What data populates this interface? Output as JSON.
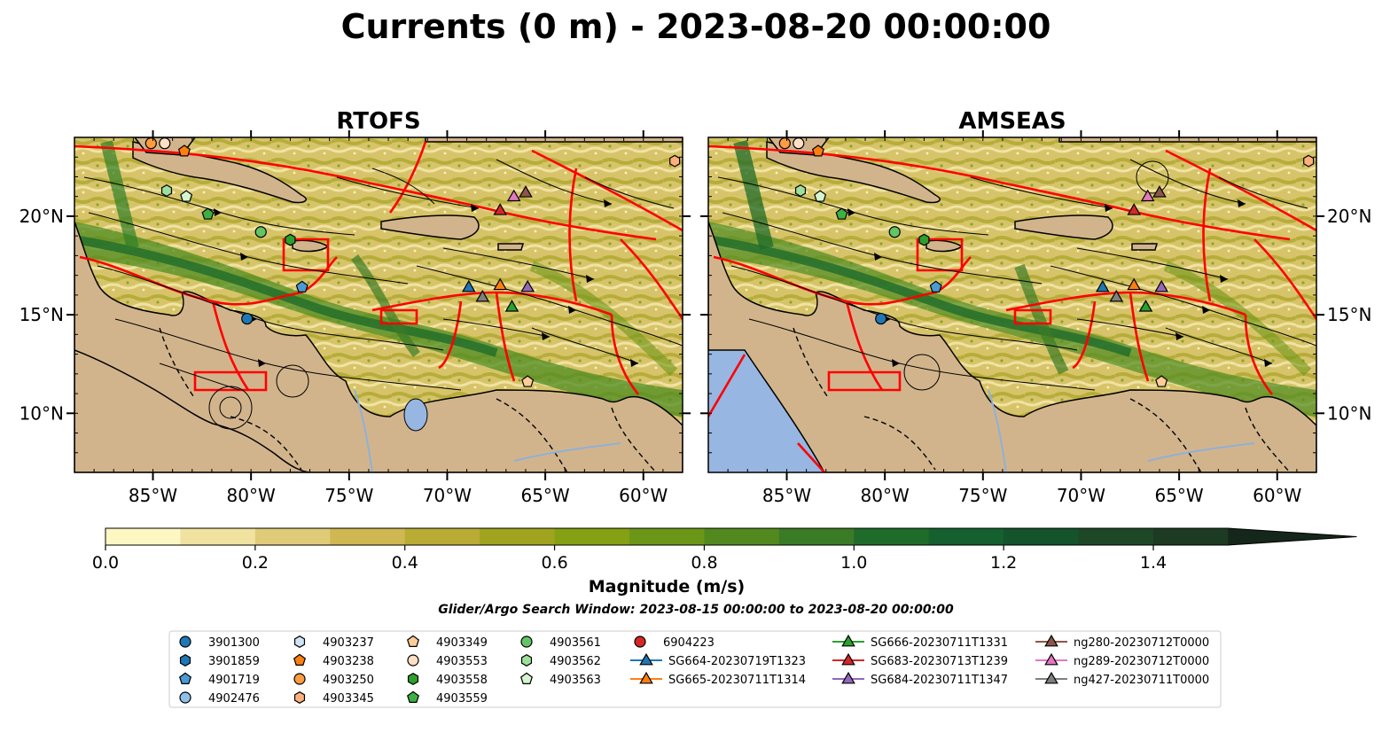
{
  "title": "Currents (0 m) - 2023-08-20 00:00:00",
  "panels": [
    {
      "title": "RTOFS",
      "ytick_side": "left"
    },
    {
      "title": "AMSEAS",
      "ytick_side": "right"
    }
  ],
  "map_extent": {
    "lon": [
      -89,
      -58
    ],
    "lat": [
      7,
      24
    ]
  },
  "xticks": [
    {
      "lon": -85,
      "label": "85°W"
    },
    {
      "lon": -80,
      "label": "80°W"
    },
    {
      "lon": -75,
      "label": "75°W"
    },
    {
      "lon": -70,
      "label": "70°W"
    },
    {
      "lon": -65,
      "label": "65°W"
    },
    {
      "lon": -60,
      "label": "60°W"
    }
  ],
  "yticks": [
    {
      "lat": 20,
      "label": "20°N"
    },
    {
      "lat": 15,
      "label": "15°N"
    },
    {
      "lat": 10,
      "label": "10°N"
    }
  ],
  "colors": {
    "land": "#d2b48c",
    "ocean_pacific": "#97b6e1",
    "eez": "#ff0000",
    "border": "#000000",
    "river": "#8fb0d8"
  },
  "colorbar": {
    "label": "Magnitude (m/s)",
    "min": 0.0,
    "max": 1.5,
    "extend": "max",
    "ticks": [
      {
        "v": 0.0,
        "label": "0.0"
      },
      {
        "v": 0.2,
        "label": "0.2"
      },
      {
        "v": 0.4,
        "label": "0.4"
      },
      {
        "v": 0.6,
        "label": "0.6"
      },
      {
        "v": 0.8,
        "label": "0.8"
      },
      {
        "v": 1.0,
        "label": "1.0"
      },
      {
        "v": 1.2,
        "label": "1.2"
      },
      {
        "v": 1.4,
        "label": "1.4"
      }
    ],
    "bins": [
      "#fdf7c3",
      "#f1e2a0",
      "#e0cb79",
      "#cfb752",
      "#b9ab34",
      "#9fa31e",
      "#86a014",
      "#6c9618",
      "#52891e",
      "#3a7b25",
      "#1f6b2a",
      "#14602f",
      "#14532c",
      "#1e4728",
      "#1d3a22"
    ],
    "extend_color": "#15261a"
  },
  "search_window": "Glider/Argo Search Window: 2023-08-15 00:00:00 to 2023-08-20 00:00:00",
  "legend_items": [
    {
      "label": "3901300",
      "marker": "circle",
      "color": "#1f77b4"
    },
    {
      "label": "3901859",
      "marker": "hexagon",
      "color": "#1f77b4"
    },
    {
      "label": "4901719",
      "marker": "pentagon",
      "color": "#4a9ad4"
    },
    {
      "label": "4902476",
      "marker": "circle",
      "color": "#8fc1e8"
    },
    {
      "label": "4903237",
      "marker": "hexagon",
      "color": "#cfe4f4"
    },
    {
      "label": "4903238",
      "marker": "pentagon",
      "color": "#ff7f0e"
    },
    {
      "label": "4903250",
      "marker": "circle",
      "color": "#ff9c3f"
    },
    {
      "label": "4903345",
      "marker": "hexagon",
      "color": "#ffb07a"
    },
    {
      "label": "4903349",
      "marker": "pentagon",
      "color": "#ffcc99"
    },
    {
      "label": "4903553",
      "marker": "circle",
      "color": "#ffe0c4"
    },
    {
      "label": "4903558",
      "marker": "hexagon",
      "color": "#2ca02c"
    },
    {
      "label": "4903559",
      "marker": "pentagon",
      "color": "#3cb043"
    },
    {
      "label": "4903561",
      "marker": "circle",
      "color": "#63c466"
    },
    {
      "label": "4903562",
      "marker": "hexagon",
      "color": "#9ee09b"
    },
    {
      "label": "4903563",
      "marker": "pentagon",
      "color": "#d4f5cf"
    },
    {
      "label": "6904223",
      "marker": "circle",
      "color": "#d62728"
    },
    {
      "label": "SG664-20230719T1323",
      "marker": "triangle",
      "color": "#1f77b4",
      "line": true
    },
    {
      "label": "SG665-20230711T1314",
      "marker": "triangle",
      "color": "#ff7f0e",
      "line": true
    },
    {
      "label": "SG666-20230711T1331",
      "marker": "triangle",
      "color": "#2ca02c",
      "line": true
    },
    {
      "label": "SG683-20230713T1239",
      "marker": "triangle",
      "color": "#d62728",
      "line": true
    },
    {
      "label": "SG684-20230711T1347",
      "marker": "triangle",
      "color": "#9467bd",
      "line": true
    },
    {
      "label": "ng280-20230712T0000",
      "marker": "triangle",
      "color": "#8c564b",
      "line": true
    },
    {
      "label": "ng289-20230712T0000",
      "marker": "triangle",
      "color": "#e377c2",
      "line": true
    },
    {
      "label": "ng427-20230711T0000",
      "marker": "triangle",
      "color": "#7f7f7f",
      "line": true
    }
  ],
  "chart_data": {
    "type": "scatter",
    "xlabel": "",
    "ylabel": "",
    "xlim": [
      -89,
      -58
    ],
    "ylim": [
      7,
      24
    ],
    "platforms": [
      {
        "id": "4903553",
        "marker": "circle",
        "color": "#ffe0c4",
        "lon": -84.4,
        "lat": 23.7
      },
      {
        "id": "4903250",
        "marker": "circle",
        "color": "#ff9c3f",
        "lon": -85.1,
        "lat": 23.7
      },
      {
        "id": "4903238",
        "marker": "pentagon",
        "color": "#ff7f0e",
        "lon": -83.4,
        "lat": 23.3
      },
      {
        "id": "4903345",
        "marker": "hexagon",
        "color": "#ffb07a",
        "lon": -58.4,
        "lat": 22.8
      },
      {
        "id": "4903562",
        "marker": "hexagon",
        "color": "#9ee09b",
        "lon": -84.3,
        "lat": 21.3
      },
      {
        "id": "4903563",
        "marker": "pentagon",
        "color": "#d4f5cf",
        "lon": -83.3,
        "lat": 21.0
      },
      {
        "id": "4903559",
        "marker": "pentagon",
        "color": "#3cb043",
        "lon": -82.2,
        "lat": 20.1
      },
      {
        "id": "4903561",
        "marker": "circle",
        "color": "#63c466",
        "lon": -79.5,
        "lat": 19.2
      },
      {
        "id": "4903558",
        "marker": "hexagon",
        "color": "#2ca02c",
        "lon": -78.0,
        "lat": 18.8
      },
      {
        "id": "4901719",
        "marker": "pentagon",
        "color": "#4a9ad4",
        "lon": -77.4,
        "lat": 16.4
      },
      {
        "id": "3901300",
        "marker": "circle",
        "color": "#1f77b4",
        "lon": -80.2,
        "lat": 14.8
      },
      {
        "id": "4903349",
        "marker": "pentagon",
        "color": "#ffcc99",
        "lon": -65.9,
        "lat": 11.6
      },
      {
        "id": "ng289-20230712T0000",
        "marker": "triangle",
        "color": "#e377c2",
        "lon": -66.6,
        "lat": 21.0
      },
      {
        "id": "ng280-20230712T0000",
        "marker": "triangle",
        "color": "#8c564b",
        "lon": -66.0,
        "lat": 21.2
      },
      {
        "id": "SG683-20230713T1239",
        "marker": "triangle",
        "color": "#d62728",
        "lon": -67.3,
        "lat": 20.3
      },
      {
        "id": "SG664-20230719T1323",
        "marker": "triangle",
        "color": "#1f77b4",
        "lon": -68.9,
        "lat": 16.4
      },
      {
        "id": "ng427-20230711T0000",
        "marker": "triangle",
        "color": "#7f7f7f",
        "lon": -68.2,
        "lat": 15.9
      },
      {
        "id": "SG665-20230711T1314",
        "marker": "triangle",
        "color": "#ff7f0e",
        "lon": -67.3,
        "lat": 16.5
      },
      {
        "id": "SG666-20230711T1331",
        "marker": "triangle",
        "color": "#2ca02c",
        "lon": -66.7,
        "lat": 15.4
      },
      {
        "id": "SG684-20230711T1347",
        "marker": "triangle",
        "color": "#9467bd",
        "lon": -65.9,
        "lat": 16.4
      }
    ]
  }
}
